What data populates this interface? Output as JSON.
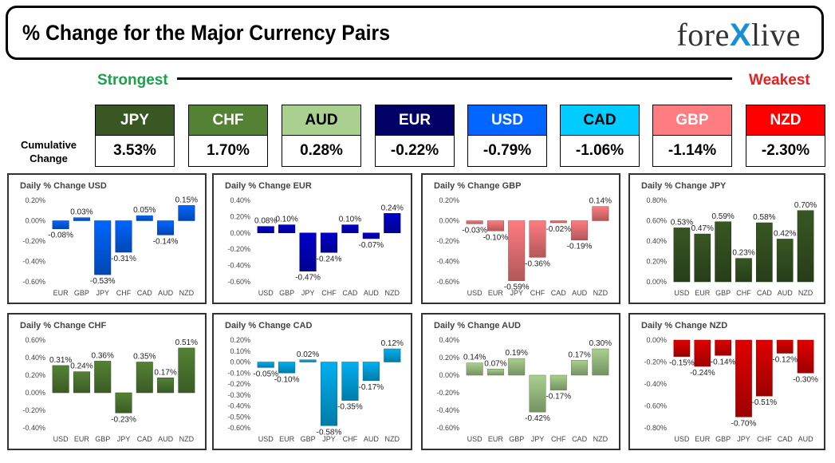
{
  "header": {
    "title": "% Change for the Major Currency Pairs",
    "logo_left": "fore",
    "logo_x": "X",
    "logo_right": "live",
    "strongest": "Strongest",
    "weakest": "Weakest",
    "cumulative_label": "Cumulative Change"
  },
  "ranking": [
    {
      "currency": "JPY",
      "value": "3.53%",
      "color": "#385723",
      "text_color": "#ffffff"
    },
    {
      "currency": "CHF",
      "value": "1.70%",
      "color": "#548235",
      "text_color": "#ffffff"
    },
    {
      "currency": "AUD",
      "value": "0.28%",
      "color": "#a9d08e",
      "text_color": "#000000"
    },
    {
      "currency": "EUR",
      "value": "-0.22%",
      "color": "#000066",
      "text_color": "#ffffff"
    },
    {
      "currency": "USD",
      "value": "-0.79%",
      "color": "#0066ff",
      "text_color": "#ffffff"
    },
    {
      "currency": "CAD",
      "value": "-1.06%",
      "color": "#00ccff",
      "text_color": "#000000"
    },
    {
      "currency": "GBP",
      "value": "-1.14%",
      "color": "#ff7c80",
      "text_color": "#ffffff"
    },
    {
      "currency": "NZD",
      "value": "-2.30%",
      "color": "#ff0000",
      "text_color": "#ffffff"
    }
  ],
  "chart_data": [
    {
      "type": "bar",
      "title": "Daily % Change USD",
      "categories": [
        "EUR",
        "GBP",
        "JPY",
        "CHF",
        "CAD",
        "AUD",
        "NZD"
      ],
      "values": [
        -0.08,
        0.03,
        -0.53,
        -0.31,
        0.05,
        -0.14,
        0.15
      ],
      "labels": [
        "-0.08%",
        "0.03%",
        "-0.53%",
        "-0.31%",
        "0.05%",
        "-0.14%",
        "0.15%"
      ],
      "yticks": [
        "0.20%",
        "0.00%",
        "-0.20%",
        "-0.40%",
        "-0.60%"
      ],
      "ylim": [
        -0.6,
        0.2
      ],
      "color": "#0066ff"
    },
    {
      "type": "bar",
      "title": "Daily % Change EUR",
      "categories": [
        "USD",
        "GBP",
        "JPY",
        "CHF",
        "CAD",
        "AUD",
        "NZD"
      ],
      "values": [
        0.08,
        0.1,
        -0.47,
        -0.24,
        0.1,
        -0.07,
        0.24
      ],
      "labels": [
        "0.08%",
        "0.10%",
        "-0.47%",
        "-0.24%",
        "0.10%",
        "-0.07%",
        "0.24%"
      ],
      "yticks": [
        "0.40%",
        "0.20%",
        "0.00%",
        "-0.20%",
        "-0.40%",
        "-0.60%"
      ],
      "ylim": [
        -0.6,
        0.4
      ],
      "color": "#0000cc"
    },
    {
      "type": "bar",
      "title": "Daily % Change GBP",
      "categories": [
        "USD",
        "EUR",
        "JPY",
        "CHF",
        "CAD",
        "AUD",
        "NZD"
      ],
      "values": [
        -0.03,
        -0.1,
        -0.59,
        -0.36,
        -0.02,
        -0.19,
        0.14
      ],
      "labels": [
        "-0.03%",
        "-0.10%",
        "-0.59%",
        "-0.36%",
        "-0.02%",
        "-0.19%",
        "0.14%"
      ],
      "yticks": [
        "0.20%",
        "0.00%",
        "-0.20%",
        "-0.40%",
        "-0.60%"
      ],
      "ylim": [
        -0.6,
        0.2
      ],
      "color": "#ff7c80"
    },
    {
      "type": "bar",
      "title": "Daily % Change JPY",
      "categories": [
        "USD",
        "EUR",
        "GBP",
        "CHF",
        "CAD",
        "AUD",
        "NZD"
      ],
      "values": [
        0.53,
        0.47,
        0.59,
        0.23,
        0.58,
        0.42,
        0.7
      ],
      "labels": [
        "0.53%",
        "0.47%",
        "0.59%",
        "0.23%",
        "0.58%",
        "0.42%",
        "0.70%"
      ],
      "yticks": [
        "0.80%",
        "0.60%",
        "0.40%",
        "0.20%",
        "0.00%"
      ],
      "ylim": [
        0,
        0.8
      ],
      "color": "#385723"
    },
    {
      "type": "bar",
      "title": "Daily % Change CHF",
      "categories": [
        "USD",
        "EUR",
        "GBP",
        "JPY",
        "CAD",
        "AUD",
        "NZD"
      ],
      "values": [
        0.31,
        0.24,
        0.36,
        -0.23,
        0.35,
        0.17,
        0.51
      ],
      "labels": [
        "0.31%",
        "0.24%",
        "0.36%",
        "-0.23%",
        "0.35%",
        "0.17%",
        "0.51%"
      ],
      "yticks": [
        "0.60%",
        "0.40%",
        "0.20%",
        "0.00%",
        "-0.20%",
        "-0.40%"
      ],
      "ylim": [
        -0.4,
        0.6
      ],
      "color": "#548235"
    },
    {
      "type": "bar",
      "title": "Daily % Change CAD",
      "categories": [
        "USD",
        "EUR",
        "GBP",
        "JPY",
        "CHF",
        "AUD",
        "NZD"
      ],
      "values": [
        -0.05,
        -0.1,
        0.02,
        -0.58,
        -0.35,
        -0.17,
        0.12
      ],
      "labels": [
        "-0.05%",
        "-0.10%",
        "0.02%",
        "-0.58%",
        "-0.35%",
        "-0.17%",
        "0.12%"
      ],
      "yticks": [
        "0.20%",
        "0.10%",
        "0.00%",
        "-0.10%",
        "-0.20%",
        "-0.30%",
        "-0.40%",
        "-0.50%",
        "-0.60%"
      ],
      "ylim": [
        -0.6,
        0.2
      ],
      "color": "#00b0f0"
    },
    {
      "type": "bar",
      "title": "Daily % Change AUD",
      "categories": [
        "USD",
        "EUR",
        "GBP",
        "JPY",
        "CHF",
        "CAD",
        "NZD"
      ],
      "values": [
        0.14,
        0.07,
        0.19,
        -0.42,
        -0.17,
        0.17,
        0.3
      ],
      "labels": [
        "0.14%",
        "0.07%",
        "0.19%",
        "-0.42%",
        "-0.17%",
        "0.17%",
        "0.30%"
      ],
      "yticks": [
        "0.40%",
        "0.20%",
        "0.00%",
        "-0.20%",
        "-0.40%",
        "-0.60%"
      ],
      "ylim": [
        -0.6,
        0.4
      ],
      "color": "#a9d08e"
    },
    {
      "type": "bar",
      "title": "Daily % Change NZD",
      "categories": [
        "USD",
        "EUR",
        "GBP",
        "JPY",
        "CHF",
        "CAD",
        "AUD"
      ],
      "values": [
        -0.15,
        -0.24,
        -0.14,
        -0.7,
        -0.51,
        -0.12,
        -0.3
      ],
      "labels": [
        "-0.15%",
        "-0.24%",
        "-0.14%",
        "-0.70%",
        "-0.51%",
        "-0.12%",
        "-0.30%"
      ],
      "yticks": [
        "0.00%",
        "-0.20%",
        "-0.40%",
        "-0.60%",
        "-0.80%"
      ],
      "ylim": [
        -0.8,
        0
      ],
      "color": "#e00000"
    }
  ]
}
